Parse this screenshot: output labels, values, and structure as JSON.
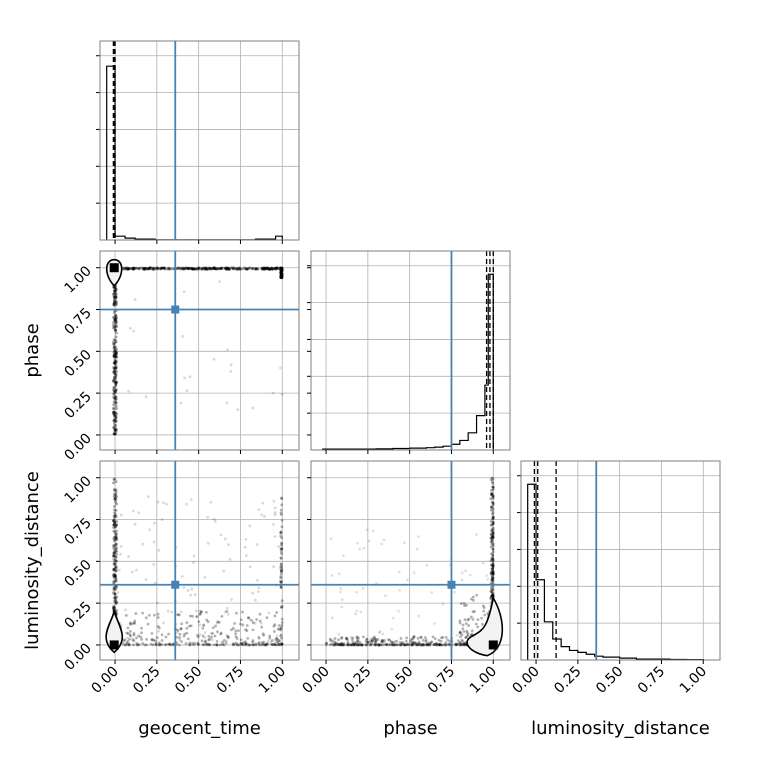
{
  "chart_data": {
    "type": "corner",
    "params": [
      "geocent_time",
      "phase",
      "luminosity_distance"
    ],
    "axis_labels": {
      "geocent_time": "geocent_time",
      "phase": "phase",
      "luminosity_distance": "luminosity_distance"
    },
    "range": [
      0,
      1
    ],
    "ticks": [
      "0.00",
      "0.25",
      "0.50",
      "0.75",
      "1.00"
    ],
    "grid": true,
    "colors": {
      "truth": "#4682b4",
      "hist": "#000000",
      "points": "#000000"
    },
    "truths": {
      "geocent_time": 0.36,
      "phase": 0.75,
      "luminosity_distance": 0.36
    },
    "histograms": {
      "geocent_time": {
        "bin_edges": [
          -0.05,
          0.0,
          0.06,
          0.12,
          0.24,
          0.36,
          0.48,
          0.6,
          0.72,
          0.84,
          0.96,
          1.0
        ],
        "heights": [
          0.91,
          0.02,
          0.01,
          0.005,
          0.001,
          0.001,
          0.001,
          0.001,
          0.001,
          0.005,
          0.02
        ],
        "quantiles": [
          -0.01,
          -0.005,
          0.0
        ]
      },
      "phase": {
        "bin_edges": [
          -0.02,
          0.1,
          0.2,
          0.3,
          0.4,
          0.5,
          0.6,
          0.65,
          0.7,
          0.75,
          0.8,
          0.85,
          0.9,
          0.95,
          0.97,
          1.0
        ],
        "heights": [
          0.005,
          0.005,
          0.005,
          0.006,
          0.008,
          0.01,
          0.012,
          0.015,
          0.02,
          0.03,
          0.05,
          0.09,
          0.18,
          0.34,
          0.92
        ],
        "quantiles": [
          0.96,
          0.98,
          1.0
        ]
      },
      "luminosity_distance": {
        "bin_edges": [
          -0.05,
          0.0,
          0.05,
          0.1,
          0.15,
          0.2,
          0.25,
          0.3,
          0.35,
          0.4,
          0.5,
          0.6,
          0.7,
          0.8,
          0.9,
          1.0
        ],
        "heights": [
          0.92,
          0.42,
          0.2,
          0.11,
          0.07,
          0.05,
          0.04,
          0.03,
          0.02,
          0.015,
          0.01,
          0.005,
          0.005,
          0.003,
          0.002
        ],
        "quantiles": [
          -0.01,
          0.01,
          0.12
        ]
      }
    }
  }
}
